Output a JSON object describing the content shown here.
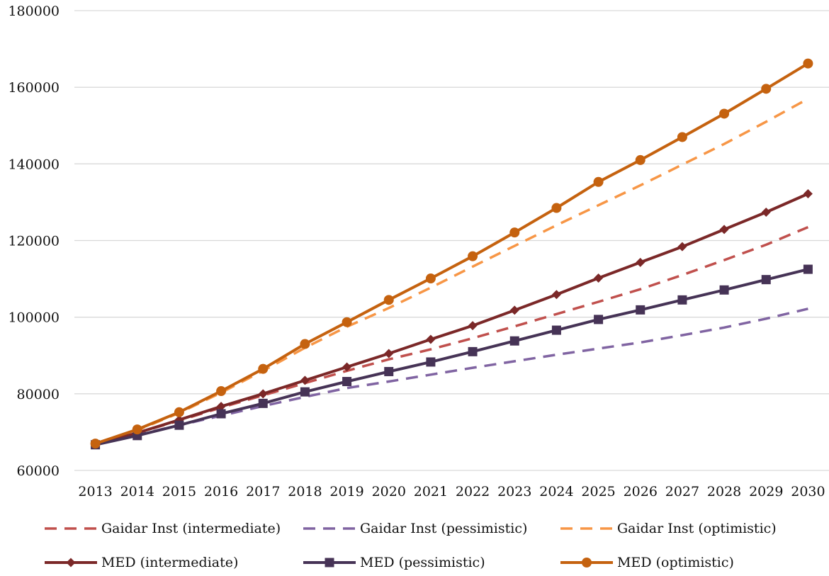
{
  "chart_data": {
    "type": "line",
    "title": "",
    "xlabel": "",
    "ylabel": "",
    "ylim": [
      60000,
      180000
    ],
    "yticks": [
      "60000",
      "80000",
      "100000",
      "120000",
      "140000",
      "160000",
      "180000"
    ],
    "grid": "horizontal",
    "legend_position": "bottom",
    "categories": [
      "2013",
      "2014",
      "2015",
      "2016",
      "2017",
      "2018",
      "2019",
      "2020",
      "2021",
      "2022",
      "2023",
      "2024",
      "2025",
      "2026",
      "2027",
      "2028",
      "2029",
      "2030"
    ],
    "series": [
      {
        "name": "Gaidar Inst (intermediate)",
        "color": "#c0504d",
        "style": "dashed",
        "marker": "none",
        "values": [
          67000,
          69800,
          73000,
          76400,
          79600,
          82800,
          86000,
          89000,
          91600,
          94500,
          97600,
          100800,
          104000,
          107300,
          111000,
          114900,
          118900,
          123500
        ]
      },
      {
        "name": "Gaidar Inst (pessimistic)",
        "color": "#8064a2",
        "style": "dashed",
        "marker": "none",
        "values": [
          67000,
          69300,
          71800,
          74300,
          76800,
          79200,
          81500,
          83200,
          85000,
          86800,
          88500,
          90200,
          91800,
          93400,
          95300,
          97300,
          99600,
          102200
        ]
      },
      {
        "name": "Gaidar Inst (optimistic)",
        "color": "#f79646",
        "style": "dashed",
        "marker": "none",
        "values": [
          67000,
          70500,
          75000,
          80300,
          86000,
          92000,
          97500,
          102400,
          107700,
          113200,
          118600,
          124000,
          129200,
          134400,
          139800,
          145200,
          151000,
          157000
        ]
      },
      {
        "name": "MED (intermediate)",
        "color": "#7b2828",
        "style": "solid",
        "marker": "diamond",
        "values": [
          66800,
          69800,
          73200,
          76700,
          80000,
          83500,
          87000,
          90500,
          94200,
          97800,
          101800,
          105900,
          110200,
          114300,
          118400,
          122900,
          127400,
          132200
        ]
      },
      {
        "name": "MED (pessimistic)",
        "color": "#463356",
        "style": "solid",
        "marker": "square",
        "values": [
          66700,
          69100,
          71800,
          74800,
          77500,
          80500,
          83200,
          85800,
          88300,
          91000,
          93800,
          96600,
          99400,
          101900,
          104500,
          107100,
          109800,
          112500
        ]
      },
      {
        "name": "MED (optimistic)",
        "color": "#c5620f",
        "style": "solid",
        "marker": "circle",
        "values": [
          67000,
          70700,
          75200,
          80700,
          86500,
          93000,
          98700,
          104500,
          110100,
          115900,
          122100,
          128500,
          135300,
          141000,
          147000,
          153100,
          159600,
          166200
        ]
      }
    ]
  }
}
